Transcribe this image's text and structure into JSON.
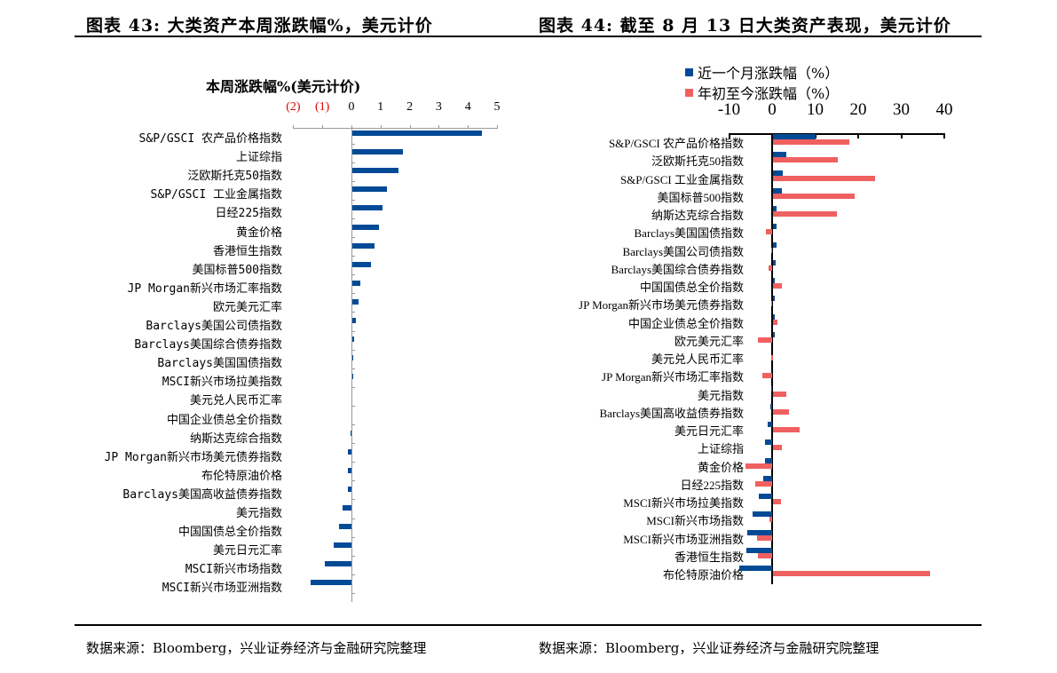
{
  "page": {
    "fig43_title": "图表 43:  大类资产本周涨跌幅%，美元计价",
    "fig44_title": "图表 44:  截至 8 月 13 日大类资产表现，美元计价",
    "source_left": "数据来源：Bloomberg，兴业证券经济与金融研究院整理",
    "source_right": "数据来源：Bloomberg，兴业证券经济与金融研究院整理"
  },
  "colors": {
    "blue": "#004A96",
    "red": "#F06060",
    "negative_tick": "#E00000"
  },
  "chart_data": [
    {
      "type": "bar",
      "orientation": "horizontal",
      "title": "本周涨跌幅%(美元计价)",
      "xlabel": "",
      "ylabel": "",
      "xlim": [
        -2,
        5
      ],
      "x_ticks": [
        "(2)",
        "(1)",
        "0",
        "1",
        "2",
        "3",
        "4",
        "5"
      ],
      "grid": false,
      "categories": [
        "S&P/GSCI 农产品价格指数",
        "上证综指",
        "泛欧斯托克50指数",
        "S&P/GSCI 工业金属指数",
        "日经225指数",
        "黄金价格",
        "香港恒生指数",
        "美国标普500指数",
        "JP Morgan新兴市场汇率指数",
        "欧元美元汇率",
        "Barclays美国公司债指数",
        "Barclays美国综合债券指数",
        "Barclays美国国债指数",
        "MSCI新兴市场拉美指数",
        "美元兑人民币汇率",
        "中国企业债总全价指数",
        "纳斯达克综合指数",
        "JP Morgan新兴市场美元债券指数",
        "布伦特原油价格",
        "Barclays美国高收益债券指数",
        "美元指数",
        "中国国债总全价指数",
        "美元日元汇率",
        "MSCI新兴市场指数",
        "MSCI新兴市场亚洲指数"
      ],
      "values": [
        4.45,
        1.75,
        1.6,
        1.2,
        1.05,
        0.9,
        0.75,
        0.65,
        0.28,
        0.22,
        0.12,
        0.05,
        0.04,
        0.04,
        0.0,
        0.0,
        -0.04,
        -0.12,
        -0.12,
        -0.12,
        -0.3,
        -0.42,
        -0.6,
        -0.9,
        -1.4
      ],
      "series": [
        {
          "name": "本周涨跌幅%",
          "color": "#004A96"
        }
      ]
    },
    {
      "type": "bar",
      "orientation": "horizontal",
      "title": "",
      "xlabel": "",
      "ylabel": "",
      "xlim": [
        -10,
        40
      ],
      "x_ticks": [
        "-10",
        "0",
        "10",
        "20",
        "30",
        "40"
      ],
      "grid": false,
      "legend_position": "top",
      "categories": [
        "S&P/GSCI 农产品价格指数",
        "泛欧斯托克50指数",
        "S&P/GSCI 工业金属指数",
        "美国标普500指数",
        "纳斯达克综合指数",
        "Barclays美国国债指数",
        "Barclays美国公司债指数",
        "Barclays美国综合债券指数",
        "中国国债总全价指数",
        "JP Morgan新兴市场美元债券指数",
        "中国企业债总全价指数",
        "欧元美元汇率",
        "美元兑人民币汇率",
        "JP Morgan新兴市场汇率指数",
        "美元指数",
        "Barclays美国高收益债券指数",
        "美元日元汇率",
        "上证综指",
        "黄金价格",
        "日经225指数",
        "MSCI新兴市场拉美指数",
        "MSCI新兴市场指数",
        "MSCI新兴市场亚洲指数",
        "香港恒生指数",
        "布伦特原油价格"
      ],
      "series": [
        {
          "name": "近一个月涨跌幅（%）",
          "color": "#004A96",
          "values": [
            9.8,
            3.0,
            2.2,
            2.1,
            0.9,
            0.8,
            0.8,
            0.6,
            0.5,
            0.5,
            0.4,
            0.1,
            0.0,
            0.0,
            -0.3,
            -0.4,
            -1.0,
            -1.6,
            -1.7,
            -2.1,
            -3.0,
            -4.5,
            -5.8,
            -5.9,
            -7.6
          ]
        },
        {
          "name": "年初至今涨跌幅（%）",
          "color": "#F06060",
          "values": [
            17.8,
            15.0,
            23.8,
            18.9,
            14.9,
            -1.5,
            -0.3,
            -0.8,
            2.1,
            -0.3,
            1.1,
            -3.4,
            -0.2,
            -2.2,
            3.0,
            3.7,
            6.1,
            2.0,
            -6.1,
            -4.0,
            1.9,
            -0.7,
            -3.6,
            -3.3,
            36.4
          ]
        }
      ]
    }
  ]
}
